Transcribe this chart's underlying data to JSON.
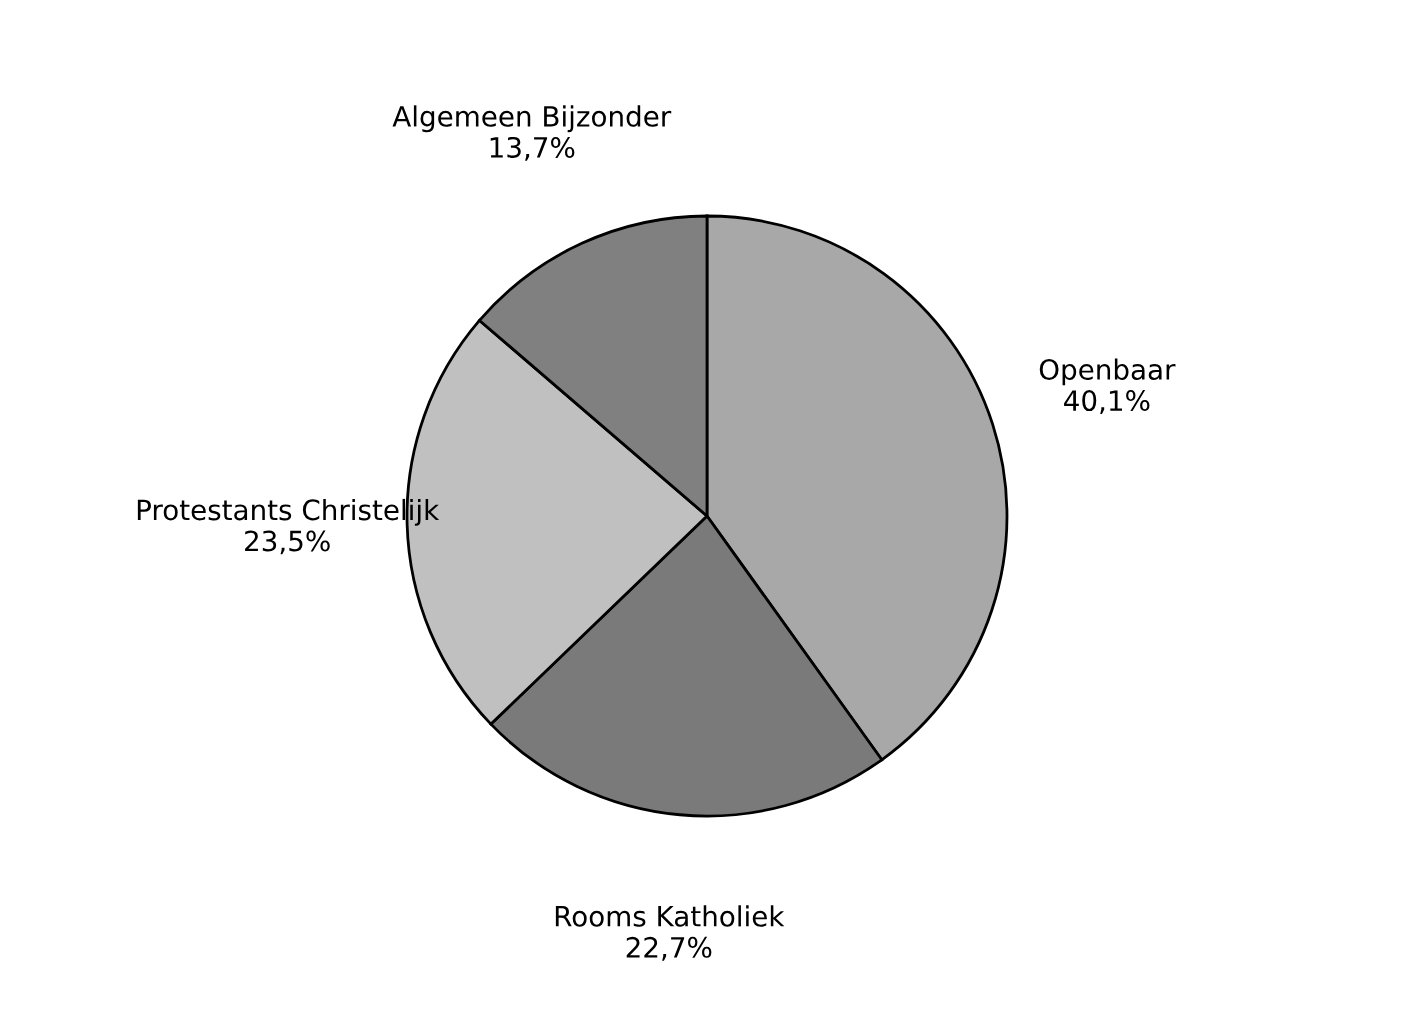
{
  "chart_data": {
    "type": "pie",
    "categories": [
      "Openbaar",
      "Rooms Katholiek",
      "Protestants Christelijk",
      "Algemeen Bijzonder"
    ],
    "values": [
      40.1,
      22.7,
      23.5,
      13.7
    ],
    "value_labels": [
      "40,1%",
      "22,7%",
      "23,5%",
      "13,7%"
    ],
    "colors": [
      "#a8a8a8",
      "#7a7a7a",
      "#c0c0c0",
      "#808080"
    ],
    "legend": false
  }
}
